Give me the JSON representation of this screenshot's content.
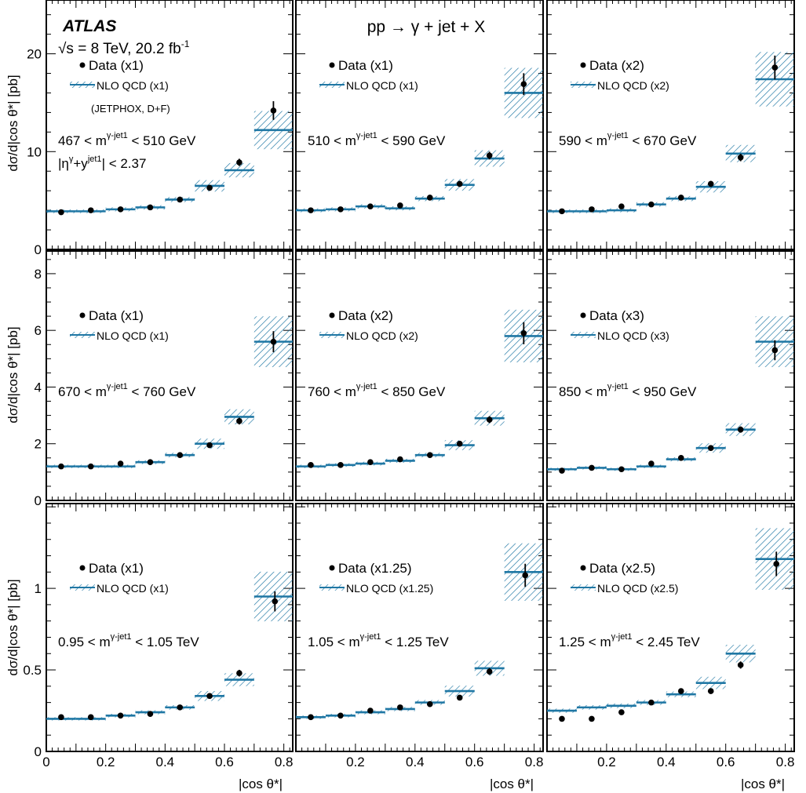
{
  "figure": {
    "experiment": "ATLAS",
    "energy_text": "√s = 8 TeV, 20.2 fb",
    "energy_sup": "-1",
    "process": "pp → γ + jet + X",
    "generator_note": "(JETPHOX, D+F)",
    "eta_cut": "|η",
    "eta_sup1": "γ",
    "eta_mid": "+y",
    "eta_sup2": "jet1",
    "eta_end": "| < 2.37",
    "ylabel": "dσ/d|cos θ*| [pb]",
    "xlabel": "|cos θ*|",
    "colors": {
      "nlo": "#1f77a4",
      "data": "#000000"
    }
  },
  "chart_data": [
    {
      "type": "scatter",
      "row": 0,
      "col": 0,
      "x_tick_labels": [],
      "y_tick_labels": [
        "0",
        "10",
        "20"
      ],
      "xlim": [
        0,
        0.83
      ],
      "ylim": [
        0,
        25.5
      ],
      "mass_prefix": "467 < m",
      "mass_sup": "γ-jet1",
      "mass_suffix": " < 510 GeV",
      "legend_data": "Data (x1)",
      "legend_nlo": "NLO QCD (x1)",
      "bins": [
        [
          0,
          0.1
        ],
        [
          0.1,
          0.2
        ],
        [
          0.2,
          0.3
        ],
        [
          0.3,
          0.4
        ],
        [
          0.4,
          0.5
        ],
        [
          0.5,
          0.6
        ],
        [
          0.6,
          0.7
        ],
        [
          0.7,
          0.83
        ]
      ],
      "nlo": [
        3.9,
        3.9,
        4.1,
        4.3,
        5.1,
        6.5,
        8.1,
        12.2
      ],
      "data_x": [
        0.05,
        0.15,
        0.25,
        0.35,
        0.45,
        0.55,
        0.65,
        0.765
      ],
      "data_y": [
        3.8,
        4.0,
        4.1,
        4.3,
        5.1,
        6.3,
        8.9,
        14.2
      ]
    },
    {
      "type": "scatter",
      "row": 0,
      "col": 1,
      "x_tick_labels": [],
      "y_tick_labels": [],
      "xlim": [
        0,
        0.83
      ],
      "ylim": [
        0,
        25.5
      ],
      "mass_prefix": "510 < m",
      "mass_sup": "γ-jet1",
      "mass_suffix": " < 590 GeV",
      "legend_data": "Data (x1)",
      "legend_nlo": "NLO QCD (x1)",
      "bins": [
        [
          0,
          0.1
        ],
        [
          0.1,
          0.2
        ],
        [
          0.2,
          0.3
        ],
        [
          0.3,
          0.4
        ],
        [
          0.4,
          0.5
        ],
        [
          0.5,
          0.6
        ],
        [
          0.6,
          0.7
        ],
        [
          0.7,
          0.83
        ]
      ],
      "nlo": [
        4.0,
        4.1,
        4.4,
        4.2,
        5.2,
        6.6,
        9.3,
        16.0
      ],
      "data_x": [
        0.05,
        0.15,
        0.25,
        0.35,
        0.45,
        0.55,
        0.65,
        0.765
      ],
      "data_y": [
        4.0,
        4.1,
        4.4,
        4.5,
        5.3,
        6.7,
        9.6,
        16.9
      ]
    },
    {
      "type": "scatter",
      "row": 0,
      "col": 2,
      "x_tick_labels": [],
      "y_tick_labels": [],
      "xlim": [
        0,
        0.83
      ],
      "ylim": [
        0,
        25.5
      ],
      "mass_prefix": "590 < m",
      "mass_sup": "γ-jet1",
      "mass_suffix": " < 670 GeV",
      "legend_data": "Data (x2)",
      "legend_nlo": "NLO QCD (x2)",
      "bins": [
        [
          0,
          0.1
        ],
        [
          0.1,
          0.2
        ],
        [
          0.2,
          0.3
        ],
        [
          0.3,
          0.4
        ],
        [
          0.4,
          0.5
        ],
        [
          0.5,
          0.6
        ],
        [
          0.6,
          0.7
        ],
        [
          0.7,
          0.83
        ]
      ],
      "nlo": [
        3.9,
        3.9,
        4.0,
        4.6,
        5.2,
        6.4,
        9.8,
        17.4
      ],
      "data_x": [
        0.05,
        0.15,
        0.25,
        0.35,
        0.45,
        0.55,
        0.65,
        0.765
      ],
      "data_y": [
        3.9,
        4.1,
        4.4,
        4.6,
        5.3,
        6.7,
        9.4,
        18.6
      ]
    },
    {
      "type": "scatter",
      "row": 1,
      "col": 0,
      "x_tick_labels": [],
      "y_tick_labels": [
        "0",
        "2",
        "4",
        "6",
        "8"
      ],
      "xlim": [
        0,
        0.83
      ],
      "ylim": [
        0,
        8.8
      ],
      "mass_prefix": "670 < m",
      "mass_sup": "γ-jet1",
      "mass_suffix": " < 760 GeV",
      "legend_data": "Data (x1)",
      "legend_nlo": "NLO QCD (x1)",
      "bins": [
        [
          0,
          0.1
        ],
        [
          0.1,
          0.2
        ],
        [
          0.2,
          0.3
        ],
        [
          0.3,
          0.4
        ],
        [
          0.4,
          0.5
        ],
        [
          0.5,
          0.6
        ],
        [
          0.6,
          0.7
        ],
        [
          0.7,
          0.83
        ]
      ],
      "nlo": [
        1.2,
        1.2,
        1.2,
        1.35,
        1.6,
        2.0,
        2.95,
        5.6
      ],
      "data_x": [
        0.05,
        0.15,
        0.25,
        0.35,
        0.45,
        0.55,
        0.65,
        0.765
      ],
      "data_y": [
        1.2,
        1.2,
        1.3,
        1.35,
        1.6,
        1.95,
        2.8,
        5.6
      ]
    },
    {
      "type": "scatter",
      "row": 1,
      "col": 1,
      "x_tick_labels": [],
      "y_tick_labels": [],
      "xlim": [
        0,
        0.83
      ],
      "ylim": [
        0,
        8.8
      ],
      "mass_prefix": "760 < m",
      "mass_sup": "γ-jet1",
      "mass_suffix": " < 850 GeV",
      "legend_data": "Data (x2)",
      "legend_nlo": "NLO QCD (x2)",
      "bins": [
        [
          0,
          0.1
        ],
        [
          0.1,
          0.2
        ],
        [
          0.2,
          0.3
        ],
        [
          0.3,
          0.4
        ],
        [
          0.4,
          0.5
        ],
        [
          0.5,
          0.6
        ],
        [
          0.6,
          0.7
        ],
        [
          0.7,
          0.83
        ]
      ],
      "nlo": [
        1.2,
        1.25,
        1.3,
        1.4,
        1.6,
        1.95,
        2.9,
        5.8
      ],
      "data_x": [
        0.05,
        0.15,
        0.25,
        0.35,
        0.45,
        0.55,
        0.65,
        0.765
      ],
      "data_y": [
        1.25,
        1.25,
        1.35,
        1.45,
        1.6,
        2.0,
        2.85,
        5.9
      ]
    },
    {
      "type": "scatter",
      "row": 1,
      "col": 2,
      "x_tick_labels": [],
      "y_tick_labels": [],
      "xlim": [
        0,
        0.83
      ],
      "ylim": [
        0,
        8.8
      ],
      "mass_prefix": "850 < m",
      "mass_sup": "γ-jet1",
      "mass_suffix": " < 950 GeV",
      "legend_data": "Data (x3)",
      "legend_nlo": "NLO QCD (x3)",
      "bins": [
        [
          0,
          0.1
        ],
        [
          0.1,
          0.2
        ],
        [
          0.2,
          0.3
        ],
        [
          0.3,
          0.4
        ],
        [
          0.4,
          0.5
        ],
        [
          0.5,
          0.6
        ],
        [
          0.6,
          0.7
        ],
        [
          0.7,
          0.83
        ]
      ],
      "nlo": [
        1.1,
        1.15,
        1.1,
        1.2,
        1.45,
        1.85,
        2.5,
        5.6
      ],
      "data_x": [
        0.05,
        0.15,
        0.25,
        0.35,
        0.45,
        0.55,
        0.65,
        0.765
      ],
      "data_y": [
        1.05,
        1.15,
        1.1,
        1.3,
        1.5,
        1.85,
        2.5,
        5.3
      ]
    },
    {
      "type": "scatter",
      "row": 2,
      "col": 0,
      "x_tick_labels": [
        "0",
        "0.2",
        "0.4",
        "0.6",
        "0.8"
      ],
      "y_tick_labels": [
        "0",
        "0.5",
        "1"
      ],
      "xlim": [
        0,
        0.83
      ],
      "ylim": [
        0,
        1.52
      ],
      "mass_prefix": "0.95 < m",
      "mass_sup": "γ-jet1",
      "mass_suffix": " < 1.05 TeV",
      "legend_data": "Data (x1)",
      "legend_nlo": "NLO QCD (x1)",
      "bins": [
        [
          0,
          0.1
        ],
        [
          0.1,
          0.2
        ],
        [
          0.2,
          0.3
        ],
        [
          0.3,
          0.4
        ],
        [
          0.4,
          0.5
        ],
        [
          0.5,
          0.6
        ],
        [
          0.6,
          0.7
        ],
        [
          0.7,
          0.83
        ]
      ],
      "nlo": [
        0.2,
        0.2,
        0.22,
        0.24,
        0.27,
        0.34,
        0.44,
        0.95
      ],
      "data_x": [
        0.05,
        0.15,
        0.25,
        0.35,
        0.45,
        0.55,
        0.65,
        0.77
      ],
      "data_y": [
        0.21,
        0.21,
        0.22,
        0.23,
        0.27,
        0.34,
        0.48,
        0.92
      ]
    },
    {
      "type": "scatter",
      "row": 2,
      "col": 1,
      "x_tick_labels": [
        "0.2",
        "0.4",
        "0.6",
        "0.8"
      ],
      "y_tick_labels": [],
      "xlim": [
        0,
        0.83
      ],
      "ylim": [
        0,
        1.52
      ],
      "mass_prefix": "1.05 < m",
      "mass_sup": "γ-jet1",
      "mass_suffix": " < 1.25 TeV",
      "legend_data": "Data (x1.25)",
      "legend_nlo": "NLO QCD (x1.25)",
      "bins": [
        [
          0,
          0.1
        ],
        [
          0.1,
          0.2
        ],
        [
          0.2,
          0.3
        ],
        [
          0.3,
          0.4
        ],
        [
          0.4,
          0.5
        ],
        [
          0.5,
          0.6
        ],
        [
          0.6,
          0.7
        ],
        [
          0.7,
          0.83
        ]
      ],
      "nlo": [
        0.21,
        0.22,
        0.24,
        0.26,
        0.3,
        0.37,
        0.51,
        1.1
      ],
      "data_x": [
        0.05,
        0.15,
        0.25,
        0.35,
        0.45,
        0.55,
        0.65,
        0.77
      ],
      "data_y": [
        0.21,
        0.22,
        0.25,
        0.27,
        0.29,
        0.33,
        0.49,
        1.08
      ]
    },
    {
      "type": "scatter",
      "row": 2,
      "col": 2,
      "x_tick_labels": [
        "0.2",
        "0.4",
        "0.6",
        "0.8"
      ],
      "y_tick_labels": [],
      "xlim": [
        0,
        0.83
      ],
      "ylim": [
        0,
        1.52
      ],
      "mass_prefix": "1.25 < m",
      "mass_sup": "γ-jet1",
      "mass_suffix": " < 2.45 TeV",
      "legend_data": "Data (x2.5)",
      "legend_nlo": "NLO QCD (x2.5)",
      "bins": [
        [
          0,
          0.1
        ],
        [
          0.1,
          0.2
        ],
        [
          0.2,
          0.3
        ],
        [
          0.3,
          0.4
        ],
        [
          0.4,
          0.5
        ],
        [
          0.5,
          0.6
        ],
        [
          0.6,
          0.7
        ],
        [
          0.7,
          0.83
        ]
      ],
      "nlo": [
        0.25,
        0.27,
        0.28,
        0.3,
        0.35,
        0.42,
        0.6,
        1.18
      ],
      "data_x": [
        0.05,
        0.15,
        0.25,
        0.35,
        0.45,
        0.55,
        0.65,
        0.77
      ],
      "data_y": [
        0.2,
        0.2,
        0.24,
        0.3,
        0.37,
        0.37,
        0.53,
        1.15
      ]
    }
  ]
}
